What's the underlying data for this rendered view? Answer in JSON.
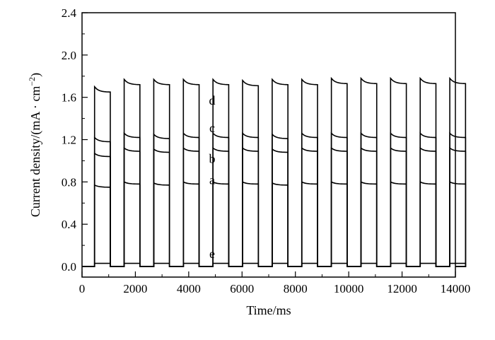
{
  "chart_data": {
    "type": "line",
    "title": "",
    "xlabel": "Time/ms",
    "ylabel": "Current density/(mA · cm",
    "ylabel_sup": "−2",
    "ylabel_close": ")",
    "xlim": [
      0,
      14000
    ],
    "ylim": [
      -0.1,
      2.4
    ],
    "xticks": [
      0,
      2000,
      4000,
      6000,
      8000,
      10000,
      12000,
      14000
    ],
    "xtick_labels": [
      "0",
      "2000",
      "4000",
      "6000",
      "8000",
      "10000",
      "12000",
      "14000"
    ],
    "yticks": [
      0.0,
      0.4,
      0.8,
      1.2,
      1.6,
      2.0,
      2.4
    ],
    "ytick_labels": [
      "0.0",
      "0.4",
      "0.8",
      "1.2",
      "1.6",
      "2.0",
      "2.4"
    ],
    "grid": false,
    "line_color": "#000000",
    "pulse": {
      "first_on_ms": 470,
      "period_ms": 1110,
      "on_duration_ms": 590,
      "count": 13,
      "baseline": 0.0
    },
    "series": [
      {
        "name": "a",
        "label_x": 4880,
        "label_y": 0.82,
        "values": [
          0.77,
          0.8,
          0.79,
          0.8,
          0.8,
          0.8,
          0.79,
          0.8,
          0.8,
          0.8,
          0.8,
          0.8,
          0.8
        ],
        "decay": 0.02
      },
      {
        "name": "b",
        "label_x": 4880,
        "label_y": 1.02,
        "values": [
          1.07,
          1.12,
          1.11,
          1.12,
          1.12,
          1.12,
          1.11,
          1.12,
          1.12,
          1.12,
          1.12,
          1.12,
          1.12
        ],
        "decay": 0.03
      },
      {
        "name": "c",
        "label_x": 4880,
        "label_y": 1.31,
        "values": [
          1.22,
          1.26,
          1.25,
          1.26,
          1.26,
          1.26,
          1.25,
          1.26,
          1.26,
          1.26,
          1.26,
          1.26,
          1.26
        ],
        "decay": 0.04
      },
      {
        "name": "d",
        "label_x": 4880,
        "label_y": 1.57,
        "values": [
          1.7,
          1.77,
          1.77,
          1.77,
          1.77,
          1.76,
          1.77,
          1.77,
          1.78,
          1.78,
          1.78,
          1.78,
          1.78
        ],
        "decay": 0.05
      },
      {
        "name": "e",
        "label_x": 4880,
        "label_y": 0.12,
        "values": [
          0.03,
          0.03,
          0.03,
          0.03,
          0.03,
          0.03,
          0.03,
          0.03,
          0.03,
          0.03,
          0.03,
          0.03,
          0.03
        ],
        "decay": 0.0
      }
    ]
  }
}
